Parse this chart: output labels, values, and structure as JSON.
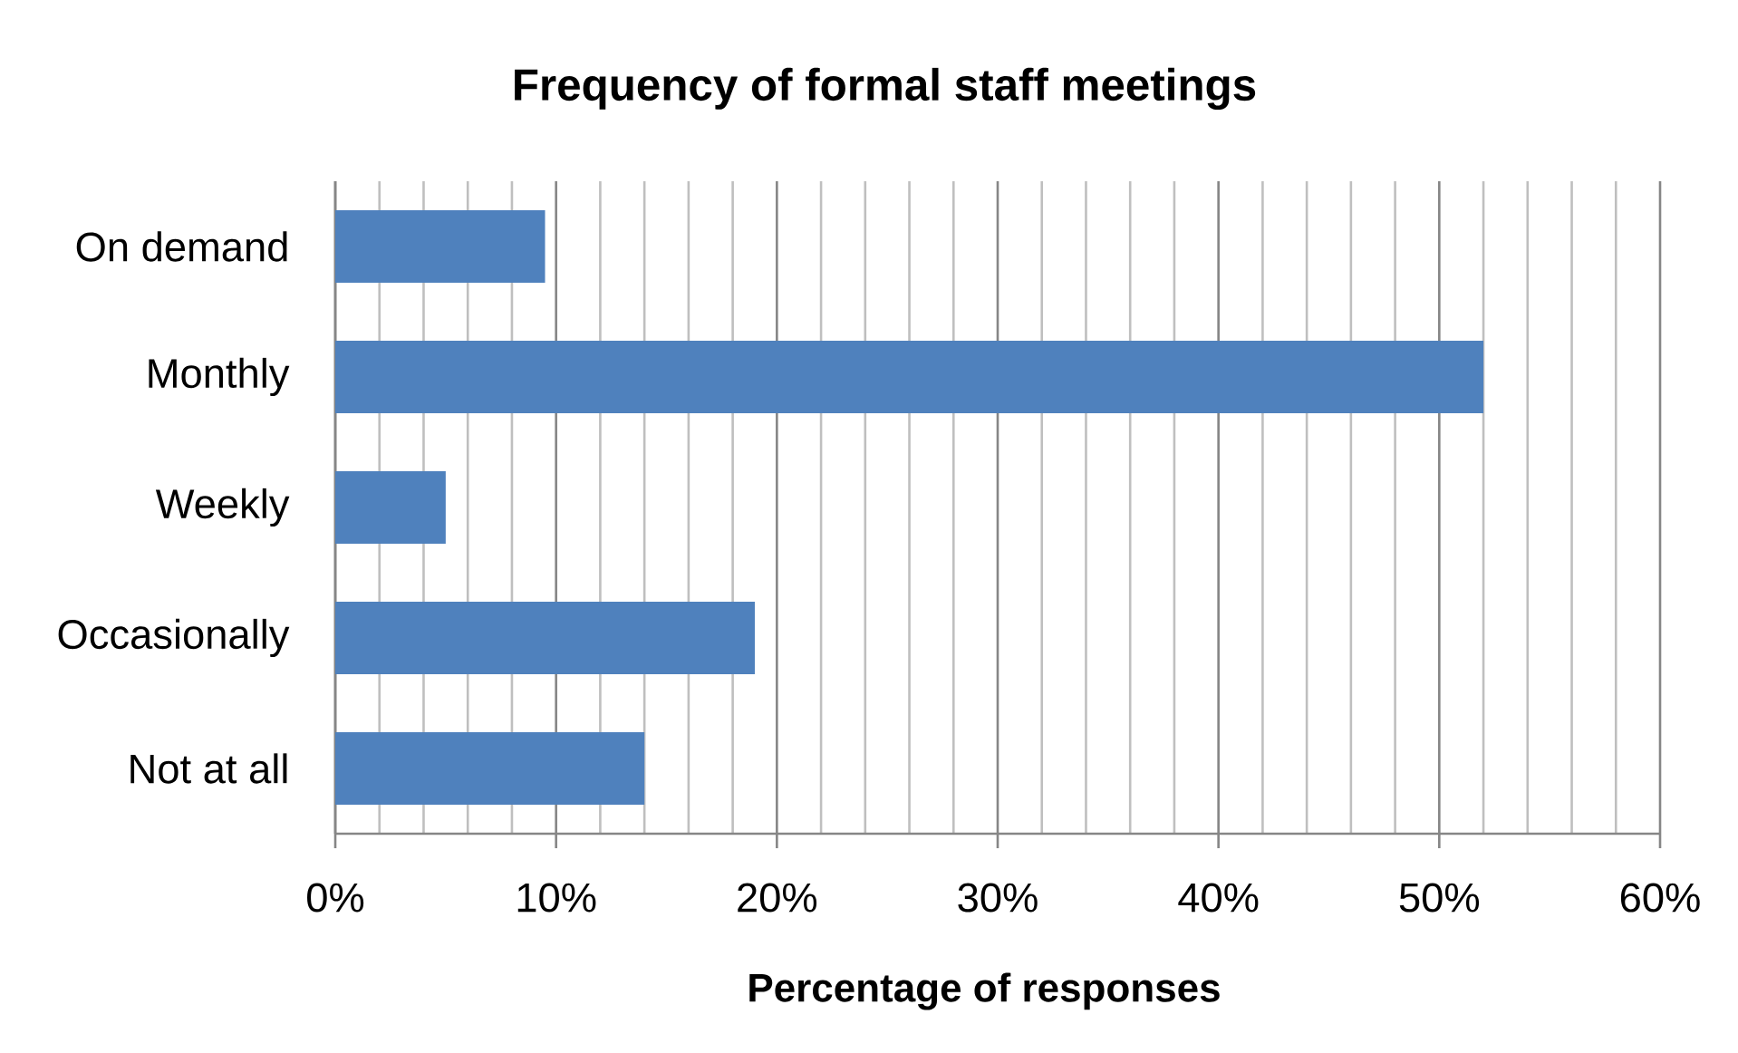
{
  "chart_data": {
    "type": "bar",
    "orientation": "horizontal",
    "title": "Frequency of formal staff meetings",
    "xlabel": "Percentage of responses",
    "categories": [
      "On demand",
      "Monthly",
      "Weekly",
      "Occasionally",
      "Not at all"
    ],
    "values": [
      9.5,
      52,
      5,
      19,
      14
    ],
    "color": "#4f81bd",
    "xlim": [
      0,
      60
    ],
    "xticks": [
      {
        "value": 0,
        "label": "0%"
      },
      {
        "value": 2,
        "label": null
      },
      {
        "value": 4,
        "label": null
      },
      {
        "value": 6,
        "label": null
      },
      {
        "value": 8,
        "label": null
      },
      {
        "value": 10,
        "label": "10%"
      },
      {
        "value": 12,
        "label": null
      },
      {
        "value": 14,
        "label": null
      },
      {
        "value": 16,
        "label": null
      },
      {
        "value": 18,
        "label": null
      },
      {
        "value": 20,
        "label": "20%"
      },
      {
        "value": 22,
        "label": null
      },
      {
        "value": 24,
        "label": null
      },
      {
        "value": 26,
        "label": null
      },
      {
        "value": 28,
        "label": null
      },
      {
        "value": 30,
        "label": "30%"
      },
      {
        "value": 32,
        "label": null
      },
      {
        "value": 34,
        "label": null
      },
      {
        "value": 36,
        "label": null
      },
      {
        "value": 38,
        "label": null
      },
      {
        "value": 40,
        "label": "40%"
      },
      {
        "value": 42,
        "label": null
      },
      {
        "value": 44,
        "label": null
      },
      {
        "value": 46,
        "label": null
      },
      {
        "value": 48,
        "label": null
      },
      {
        "value": 50,
        "label": "50%"
      },
      {
        "value": 52,
        "label": null
      },
      {
        "value": 54,
        "label": null
      },
      {
        "value": 56,
        "label": null
      },
      {
        "value": 58,
        "label": null
      },
      {
        "value": 60,
        "label": "60%"
      }
    ],
    "grid": "x"
  }
}
